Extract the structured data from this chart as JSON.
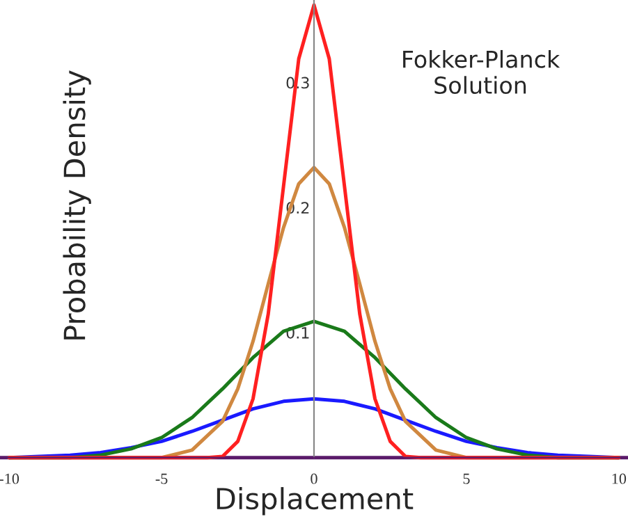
{
  "chart_data": {
    "type": "line",
    "title": "Fokker-Planck\nSolution",
    "xlabel": "Displacement",
    "ylabel": "Probability Density",
    "xlim": [
      -10.3,
      10.3
    ],
    "ylim": [
      0,
      0.366
    ],
    "xticks": [
      -10,
      -5,
      0,
      5,
      10
    ],
    "yticks": [
      0.1,
      0.2,
      0.3
    ],
    "grid": false,
    "legend": false,
    "marker": "none",
    "line_style": "solid",
    "series": [
      {
        "color": "#5a1a6a",
        "x": [
          -10.3,
          10.3
        ],
        "values": [
          0,
          0
        ]
      },
      {
        "color": "#1a1aff",
        "x": [
          -10,
          -9,
          -8,
          -7,
          -6,
          -5,
          -4,
          -3,
          -2,
          -1,
          0,
          1,
          2,
          3,
          4,
          5,
          6,
          7,
          8,
          9,
          10
        ],
        "values": [
          0,
          0.001,
          0.002,
          0.004,
          0.008,
          0.013,
          0.021,
          0.03,
          0.039,
          0.045,
          0.047,
          0.045,
          0.039,
          0.03,
          0.021,
          0.013,
          0.008,
          0.004,
          0.002,
          0.001,
          0
        ]
      },
      {
        "color": "#1a7a1a",
        "x": [
          -10,
          -8,
          -7,
          -6,
          -5,
          -4,
          -3,
          -2,
          -1,
          0,
          1,
          2,
          3,
          4,
          5,
          6,
          7,
          8,
          10
        ],
        "values": [
          0,
          0,
          0.002,
          0.007,
          0.016,
          0.032,
          0.055,
          0.08,
          0.101,
          0.109,
          0.101,
          0.08,
          0.055,
          0.032,
          0.016,
          0.007,
          0.002,
          0,
          0
        ]
      },
      {
        "color": "#d08840",
        "x": [
          -10,
          -5,
          -4,
          -3,
          -2.5,
          -2,
          -1.5,
          -1,
          -0.5,
          0,
          0.5,
          1,
          1.5,
          2,
          2.5,
          3,
          4,
          5,
          10
        ],
        "values": [
          0,
          0,
          0.006,
          0.029,
          0.055,
          0.093,
          0.139,
          0.184,
          0.219,
          0.232,
          0.219,
          0.184,
          0.139,
          0.093,
          0.055,
          0.029,
          0.006,
          0,
          0
        ]
      },
      {
        "color": "#ff2020",
        "x": [
          -10,
          -3.5,
          -3,
          -2.5,
          -2,
          -1.5,
          -1,
          -0.5,
          0,
          0.5,
          1,
          1.5,
          2,
          2.5,
          3,
          3.5,
          10
        ],
        "values": [
          0,
          0,
          0.001,
          0.013,
          0.047,
          0.115,
          0.217,
          0.319,
          0.362,
          0.319,
          0.217,
          0.115,
          0.047,
          0.013,
          0.001,
          0,
          0
        ]
      }
    ]
  }
}
